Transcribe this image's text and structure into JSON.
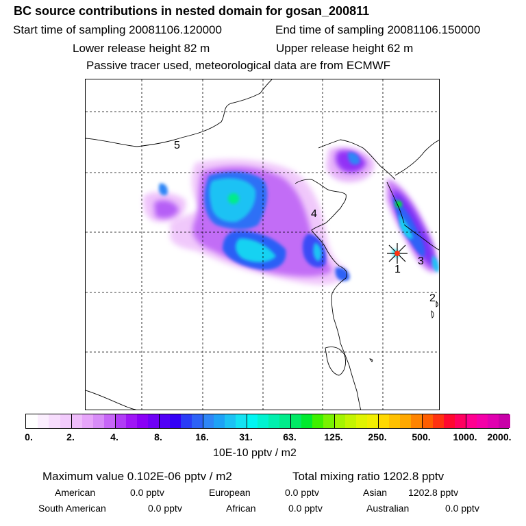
{
  "header": {
    "title": "BC  source contributions in nested domain for gosan_200811",
    "start_time": "Start time of sampling 20081106.120000",
    "end_time": "End time of sampling 20081106.150000",
    "lower_release": "Lower release height   82 m",
    "upper_release": "Upper release height   62 m",
    "tracer_note": "Passive tracer used, meteorological data are from ECMWF"
  },
  "map": {
    "region_labels": [
      "1",
      "2",
      "3",
      "4",
      "5"
    ],
    "receptor_marker": "receptor-star"
  },
  "colorbar": {
    "tick_labels": [
      "0.",
      "2.",
      "4.",
      "8.",
      "16.",
      "31.",
      "63.",
      "125.",
      "250.",
      "500.",
      "1000.",
      "2000."
    ],
    "units": "10E-10 pptv / m2",
    "colors": [
      "#ffffff",
      "#fbeefe",
      "#f7ddfd",
      "#f2cbfc",
      "#efbdfb",
      "#e7a5fa",
      "#d88cf8",
      "#c766f7",
      "#b13cf6",
      "#9f16f6",
      "#8a00f6",
      "#6f00f6",
      "#5200f6",
      "#3300f6",
      "#2a3cf6",
      "#2d62f6",
      "#2e86f6",
      "#1ea2f6",
      "#1cc2f4",
      "#14e2f2",
      "#00f5f2",
      "#00f2d0",
      "#00efae",
      "#00ec8a",
      "#00e965",
      "#00ea2e",
      "#3ef000",
      "#79f200",
      "#a4f400",
      "#c4f400",
      "#e0f400",
      "#f2ee00",
      "#ffd800",
      "#ffc000",
      "#ffa800",
      "#ff8400",
      "#ff5e00",
      "#ff3210",
      "#ff0830",
      "#ff0060",
      "#ff0090",
      "#f400a8",
      "#e000b0",
      "#c800a8",
      "#ae009c",
      "#94008c",
      "#780078",
      "#580058"
    ]
  },
  "stats": {
    "max_value": "Maximum value  0.102E-06 pptv / m2",
    "total_mixing": "Total mixing ratio     1202.8 pptv",
    "american": "American",
    "american_val": "0.0 pptv",
    "european": "European",
    "european_val": "0.0 pptv",
    "asian": "Asian",
    "asian_val": "1202.8 pptv",
    "south_american": "South American",
    "south_american_val": "0.0 pptv",
    "african": "African",
    "african_val": "0.0 pptv",
    "australian": "Australian",
    "australian_val": "0.0 pptv"
  }
}
